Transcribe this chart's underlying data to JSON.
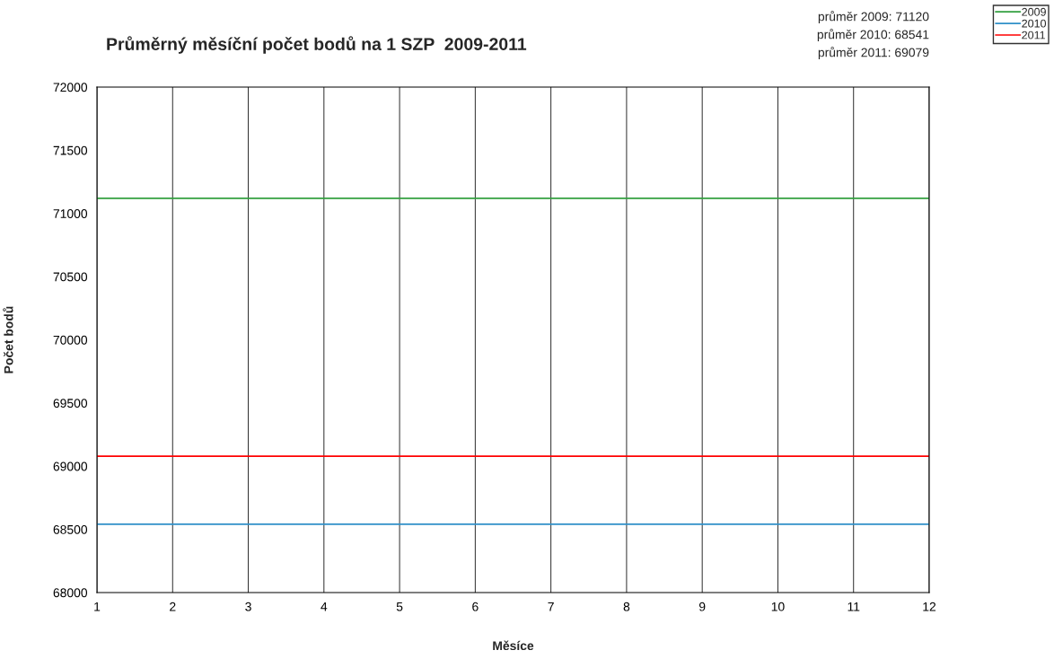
{
  "chart_data": {
    "type": "line",
    "title": "Průměrný měsíční počet bodů na 1 SZP  2009-2011",
    "xlabel": "Měsíce",
    "ylabel": "Počet bodů",
    "x": [
      1,
      12
    ],
    "series": [
      {
        "name": "2009",
        "color": "#33a040",
        "values": [
          71120,
          71120
        ]
      },
      {
        "name": "2010",
        "color": "#3090c8",
        "values": [
          68541,
          68541
        ]
      },
      {
        "name": "2011",
        "color": "#ff0000",
        "values": [
          69079,
          69079
        ]
      }
    ],
    "annotations": [
      "průměr 2009: 71120",
      "průměr 2010: 68541",
      "průměr 2011: 69079"
    ],
    "xlim": [
      1,
      12
    ],
    "xticks": [
      1,
      2,
      3,
      4,
      5,
      6,
      7,
      8,
      9,
      10,
      11,
      12
    ],
    "ylim": [
      68000,
      72000
    ],
    "yticks": [
      68000,
      68500,
      69000,
      69500,
      70000,
      70500,
      71000,
      71500,
      72000
    ],
    "grid": "x",
    "legend": "top right",
    "marker": "none",
    "line_style": "solid"
  }
}
